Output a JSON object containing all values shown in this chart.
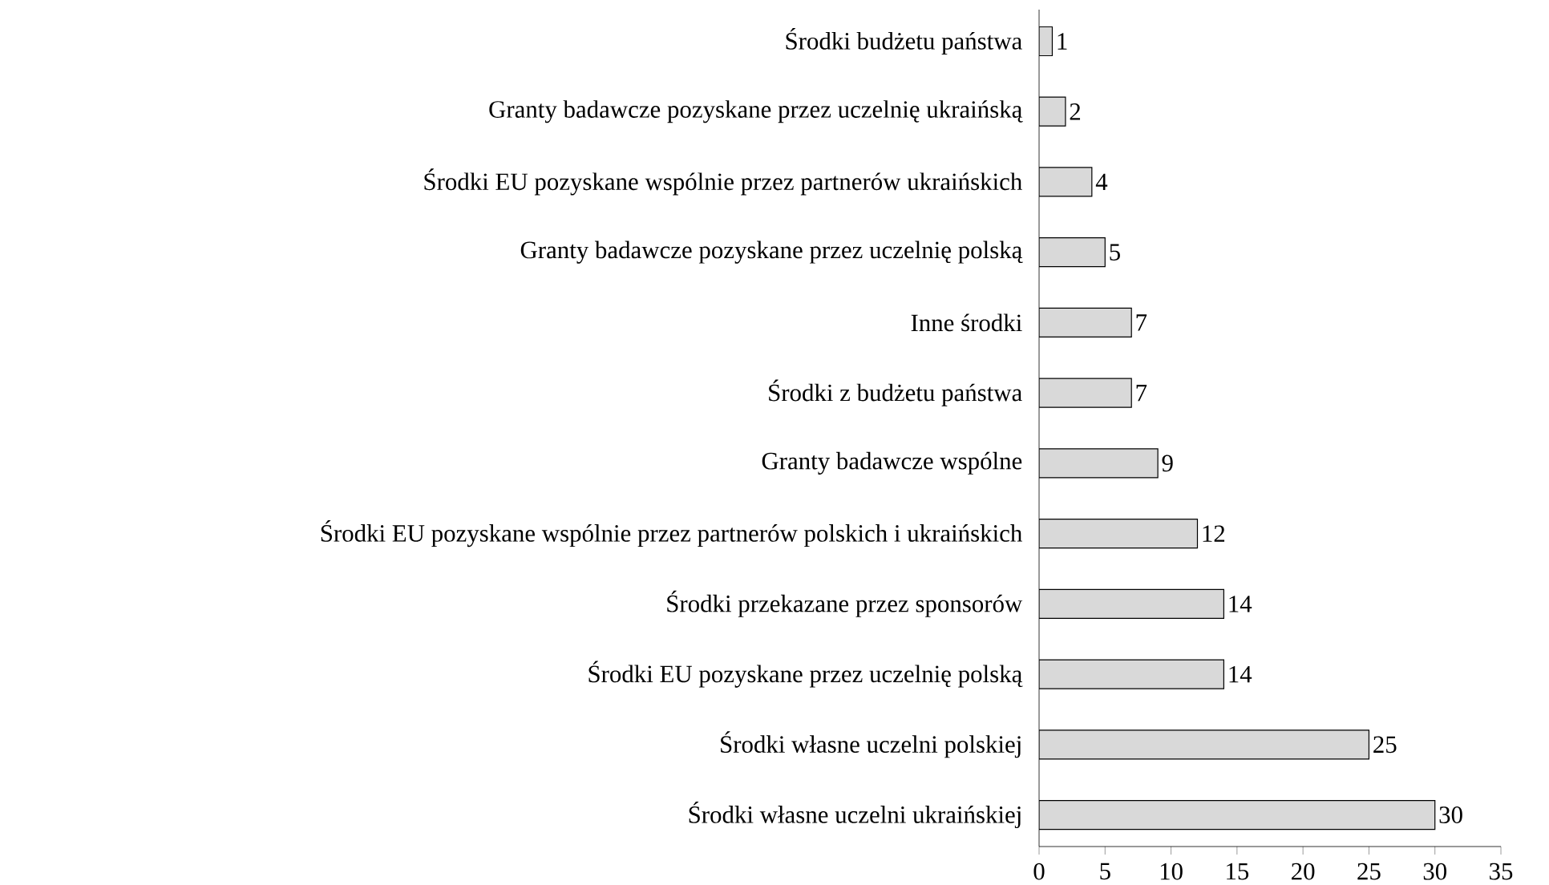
{
  "chart_data": {
    "type": "bar",
    "orientation": "horizontal",
    "categories": [
      "Środki budżetu państwa",
      "Granty badawcze pozyskane przez uczelnię ukraińską",
      "Środki EU pozyskane wspólnie przez partnerów ukraińskich",
      "Granty badawcze pozyskane  przez uczelnię polską",
      "Inne środki",
      "Środki z budżetu państwa",
      "Granty badawcze wspólne",
      "Środki EU pozyskane wspólnie przez partnerów polskich i ukraińskich",
      "Środki przekazane przez sponsorów",
      "Środki EU pozyskane przez uczelnię polską",
      "Środki własne uczelni polskiej",
      "Środki własne uczelni ukraińskiej"
    ],
    "values": [
      1,
      2,
      4,
      5,
      7,
      7,
      9,
      12,
      14,
      14,
      25,
      30
    ],
    "color": "#d9d9d9",
    "xlim": [
      0,
      35
    ],
    "xticks": [
      0,
      5,
      10,
      15,
      20,
      25,
      30,
      35
    ],
    "data_labels": true
  }
}
